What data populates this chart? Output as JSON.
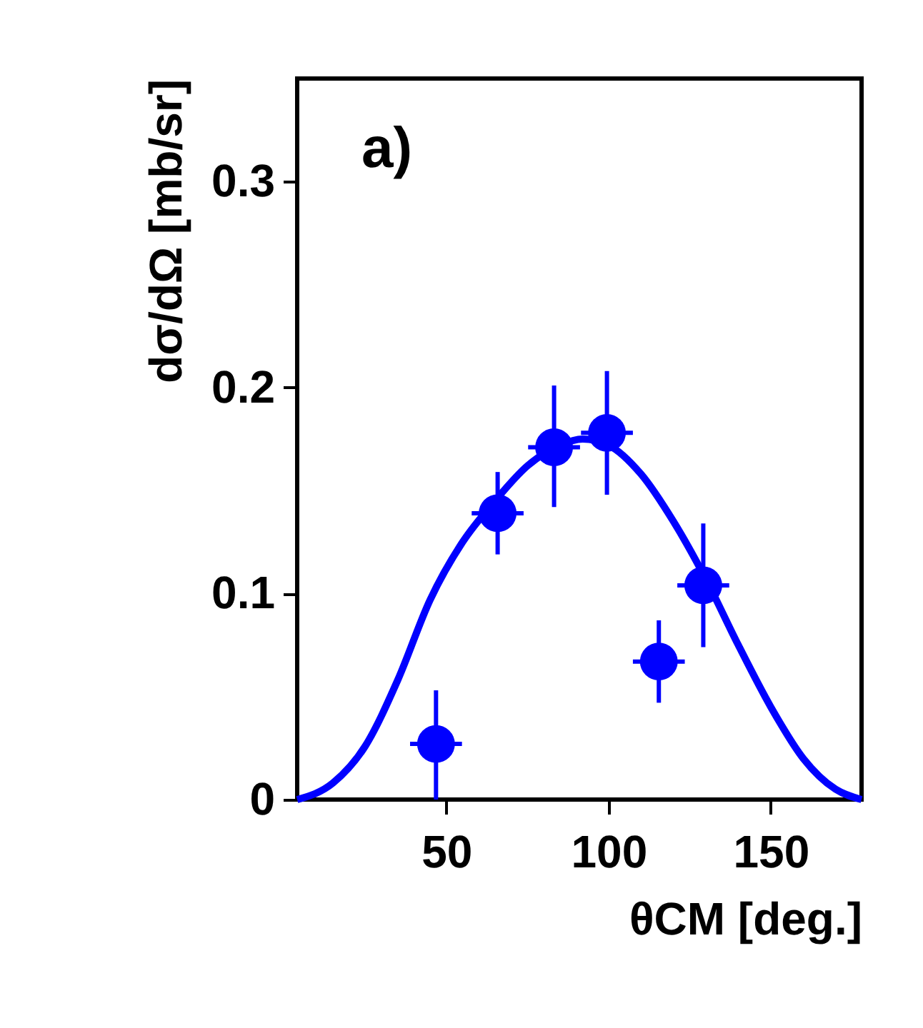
{
  "chart_data": {
    "type": "scatter",
    "xlabel": "θCM [deg.]",
    "ylabel": "dσ/dΩ [mb/sr]",
    "annotations": [
      "a)"
    ],
    "xlim": [
      4,
      178
    ],
    "xticks": [
      50,
      100,
      150
    ],
    "ylim": [
      0,
      0.35
    ],
    "yticks": [
      0,
      0.1,
      0.2,
      0.3
    ],
    "marker": "circle",
    "series": [
      {
        "color": "#0000ff",
        "x": [
          46.8,
          65.8,
          83.2,
          99.5,
          115.5,
          129.2
        ],
        "values": [
          0.027,
          0.139,
          0.171,
          0.178,
          0.067,
          0.104
        ],
        "errors": [
          [
            0,
            0.053
          ],
          [
            0.119,
            0.159
          ],
          [
            0.142,
            0.201
          ],
          [
            0.148,
            0.208
          ],
          [
            0.047,
            0.087
          ],
          [
            0.074,
            0.134
          ]
        ],
        "xerrors": [
          8,
          8,
          8,
          8,
          8,
          8
        ]
      },
      {
        "type": "line",
        "color": "#0000ff",
        "line_style": "solid",
        "marker": "none",
        "x": [
          4,
          15,
          25,
          35,
          45,
          55,
          65,
          75,
          85,
          92,
          100,
          110,
          120,
          130,
          140,
          150,
          160,
          170,
          178
        ],
        "values": [
          0,
          0.008,
          0.026,
          0.058,
          0.097,
          0.125,
          0.145,
          0.162,
          0.172,
          0.175,
          0.172,
          0.158,
          0.135,
          0.107,
          0.075,
          0.045,
          0.02,
          0.005,
          0
        ]
      }
    ]
  }
}
